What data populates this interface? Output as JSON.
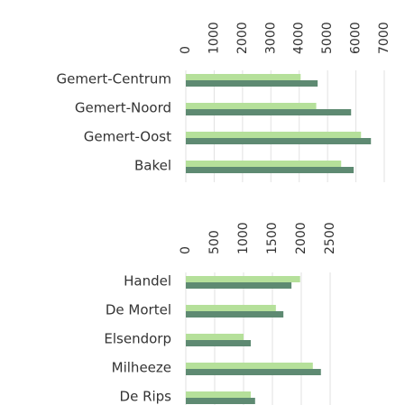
{
  "chart_data": [
    {
      "type": "bar",
      "orientation": "horizontal",
      "categories": [
        "Gemert-Centrum",
        "Gemert-Noord",
        "Gemert-Oost",
        "Bakel"
      ],
      "series": [
        {
          "color": "#b5e09a",
          "values": [
            4050,
            4600,
            6180,
            5480
          ]
        },
        {
          "color": "#5e8a72",
          "values": [
            4650,
            5830,
            6530,
            5920
          ]
        }
      ],
      "xlim": [
        0,
        7000
      ],
      "xticks": [
        0,
        1000,
        2000,
        3000,
        4000,
        5000,
        6000,
        7000
      ],
      "grid": true
    },
    {
      "type": "bar",
      "orientation": "horizontal",
      "categories": [
        "Handel",
        "De Mortel",
        "Elsendorp",
        "Milheeze",
        "De Rips"
      ],
      "series": [
        {
          "color": "#b5e09a",
          "values": [
            1980,
            1560,
            1000,
            2200,
            1125
          ]
        },
        {
          "color": "#5e8a72",
          "values": [
            1830,
            1690,
            1125,
            2340,
            1200
          ]
        }
      ],
      "xlim": [
        0,
        3000
      ],
      "xticks": [
        0,
        500,
        1000,
        1500,
        2000,
        2500
      ],
      "grid": true
    }
  ]
}
